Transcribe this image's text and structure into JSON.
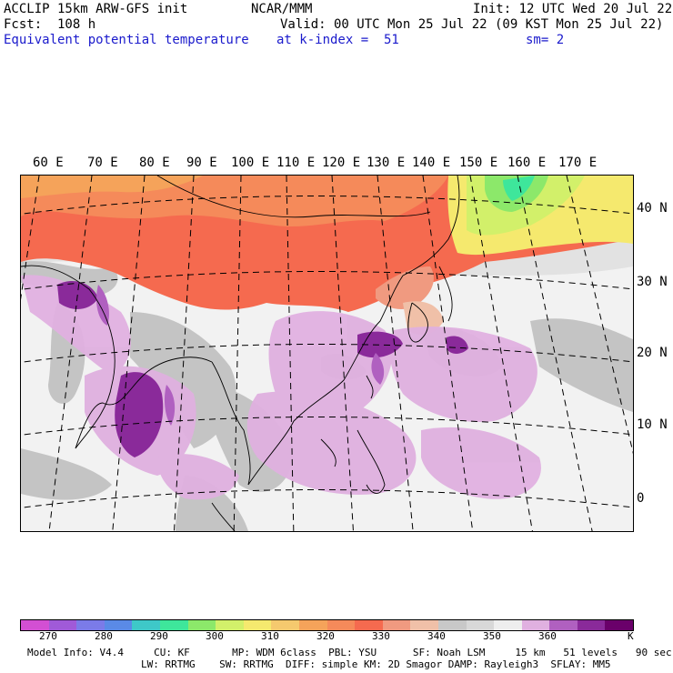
{
  "header": {
    "line1_left": "ACCLIP 15km ARW-GFS init",
    "line1_mid": "NCAR/MMM",
    "line1_right": "Init: 12 UTC Wed 20 Jul 22",
    "line2_left": "Fcst:  108 h",
    "line2_right": "Valid: 00 UTC Mon 25 Jul 22 (09 KST Mon 25 Jul 22)",
    "line3_left": "Equivalent potential temperature",
    "line3_mid": "at k-index =  51",
    "line3_right": "sm= 2"
  },
  "lon_labels": [
    "60 E",
    "70 E",
    "80 E",
    "90 E",
    "100 E",
    "110 E",
    "120 E",
    "130 E",
    "140 E",
    "150 E",
    "160 E",
    "170 E"
  ],
  "lat_labels": [
    "40 N",
    "30 N",
    "20 N",
    "10 N",
    "0"
  ],
  "colorbar": {
    "colors": [
      "#d34fd3",
      "#a05ad8",
      "#7b7be8",
      "#5a8ae6",
      "#3ec8c8",
      "#3ee69b",
      "#8ce86a",
      "#d2f06a",
      "#f5e96e",
      "#f5c96e",
      "#f5a35a",
      "#f58a5a",
      "#f56a4f",
      "#f09a80",
      "#f0c0a8",
      "#c8c8c8",
      "#d8d8d8",
      "#eeeeee",
      "#e0b0e0",
      "#b060c0",
      "#8a2a9a",
      "#6a006a"
    ],
    "labels": [
      "270",
      "280",
      "290",
      "300",
      "310",
      "320",
      "330",
      "340",
      "350",
      "360",
      "K"
    ]
  },
  "footer": {
    "line1": "Model Info: V4.4     CU: KF       MP: WDM 6class  PBL: YSU      SF: Noah LSM     15 km   51 levels   90 sec",
    "line2": "LW: RRTMG    SW: RRTMG  DIFF: simple KM: 2D Smagor DAMP: Rayleigh3  SFLAY: MM5"
  }
}
